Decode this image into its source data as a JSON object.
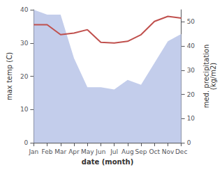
{
  "chart_data": {
    "type": "line",
    "categories": [
      "Jan",
      "Feb",
      "Mar",
      "Apr",
      "May",
      "Jun",
      "Jul",
      "Aug",
      "Sep",
      "Oct",
      "Nov",
      "Dec"
    ],
    "xlabel": "date (month)",
    "ylabel": "max temp (C)",
    "y2label": "med. precipitation\n(kg/m2)",
    "series": [
      {
        "type": "area",
        "axis": "y2",
        "color": "#b8c4e8",
        "values": [
          55,
          53,
          53,
          35,
          23,
          23,
          22,
          26,
          24,
          33,
          42,
          45
        ]
      },
      {
        "type": "line",
        "color": "#c0504d",
        "values": [
          35.5,
          35.5,
          32.5,
          33.0,
          34.0,
          30.2,
          30.0,
          30.5,
          32.5,
          36.5,
          38.0,
          37.5
        ]
      }
    ],
    "ylim": [
      0,
      40
    ],
    "yticks": [
      0,
      10,
      20,
      30,
      40
    ],
    "y2lim": [
      0,
      55
    ],
    "y2ticks": [
      0,
      10,
      20,
      30,
      40,
      50
    ],
    "grid": false
  }
}
